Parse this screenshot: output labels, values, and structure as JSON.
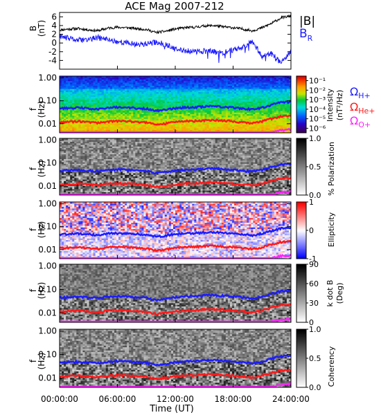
{
  "title": "ACE Mag 2007-212",
  "colors": {
    "bmag": "#000000",
    "br": "#1c1cff",
    "h_plus": "#1c1cff",
    "he_plus": "#ff1a1a",
    "o_plus": "#ff22ff",
    "frame": "#000000"
  },
  "chart_data": [
    {
      "type": "line",
      "panel": "field",
      "ylabel_line1": "B",
      "ylabel_line2": "(nT)",
      "ylim": [
        -6,
        7
      ],
      "yticks": [
        "6",
        "4",
        "2",
        "0",
        "-2",
        "-4"
      ],
      "ytick_values": [
        6,
        4,
        2,
        0,
        -2,
        -4
      ],
      "legend_top_right": [
        "|B|",
        "B_R"
      ],
      "legend": {
        "bmag": "|B|",
        "br_main": "B",
        "br_sub": "R"
      },
      "x": [
        0,
        1,
        2,
        3,
        4,
        5,
        6,
        7,
        8,
        9,
        10,
        11,
        12,
        13,
        14,
        15,
        16,
        17,
        18,
        19,
        20,
        21,
        22,
        23,
        24
      ],
      "series": [
        {
          "name": "|B|",
          "key": "bmag",
          "values": [
            3.0,
            3.2,
            3.3,
            3.0,
            2.8,
            3.4,
            3.6,
            3.5,
            3.3,
            3.1,
            2.4,
            2.7,
            3.2,
            3.5,
            3.6,
            3.9,
            4.0,
            3.7,
            3.5,
            3.2,
            2.8,
            3.5,
            4.5,
            5.8,
            6.2
          ]
        },
        {
          "name": "B_R",
          "key": "br",
          "values": [
            1.5,
            1.0,
            0.6,
            0.8,
            1.2,
            0.8,
            0.3,
            0.0,
            -0.3,
            -0.2,
            0.2,
            -0.3,
            -1.5,
            -1.8,
            -2.0,
            -1.8,
            -2.0,
            -2.3,
            -1.5,
            -1.0,
            0.5,
            -3.0,
            -2.5,
            -4.6,
            -2.0
          ]
        }
      ]
    },
    {
      "type": "heatmap",
      "panel": "intensity",
      "ylabel_line1": "f",
      "ylabel_line2": "(Hz)",
      "ylim": [
        0.004,
        1.2
      ],
      "y_scale": "log",
      "yticks": [
        "1.00",
        "0.10",
        "0.01"
      ],
      "colorbar_label": "Intensity",
      "colorbar_unit": "(nT²/Hz)",
      "colorbar_ticks": [
        "10⁻¹",
        "10⁻²",
        "10⁻³",
        "10⁻⁴",
        "10⁻⁵",
        "10⁻⁶"
      ],
      "colorbar_range": [
        5e-07,
        0.3
      ],
      "colorscale": "rainbow"
    },
    {
      "type": "heatmap",
      "panel": "polarization",
      "ylabel_line1": "f",
      "ylabel_line2": "(Hz)",
      "ylim": [
        0.004,
        1.2
      ],
      "y_scale": "log",
      "yticks": [
        "1.00",
        "0.10",
        "0.01"
      ],
      "colorbar_label": "% Polarization",
      "colorbar_ticks": [
        "1.0",
        "0.5",
        "0.0"
      ],
      "colorbar_range": [
        0,
        1
      ],
      "colorscale": "gray"
    },
    {
      "type": "heatmap",
      "panel": "ellipticity",
      "ylabel_line1": "f",
      "ylabel_line2": "(Hz)",
      "ylim": [
        0.004,
        1.2
      ],
      "y_scale": "log",
      "yticks": [
        "1.00",
        "0.10",
        "0.01"
      ],
      "colorbar_label": "Ellipticity",
      "colorbar_ticks": [
        "1",
        "0",
        "-1"
      ],
      "colorbar_range": [
        -1,
        1
      ],
      "colorscale": "blue-white-red"
    },
    {
      "type": "heatmap",
      "panel": "kdotb",
      "ylabel_line1": "f",
      "ylabel_line2": "(Hz)",
      "ylim": [
        0.004,
        1.2
      ],
      "y_scale": "log",
      "yticks": [
        "1.00",
        "0.10",
        "0.01"
      ],
      "colorbar_label": "k dot B",
      "colorbar_unit": "(Deg)",
      "colorbar_ticks": [
        "90",
        "60",
        "30",
        "0"
      ],
      "colorbar_range": [
        0,
        90
      ],
      "colorscale": "gray"
    },
    {
      "type": "heatmap",
      "panel": "coherency",
      "ylabel_line1": "f",
      "ylabel_line2": "(Hz)",
      "ylim": [
        0.004,
        1.2
      ],
      "y_scale": "log",
      "yticks": [
        "1.00",
        "0.10",
        "0.01"
      ],
      "colorbar_label": "Coherency",
      "colorbar_ticks": [
        "1.0",
        "0.5",
        "0.0"
      ],
      "colorbar_range": [
        0,
        1
      ],
      "colorscale": "gray"
    }
  ],
  "gyro": {
    "labels": [
      "Ω_H+",
      "Ω_He+",
      "Ω_O+"
    ],
    "omega": "Ω",
    "h_sub": "H+",
    "he_sub": "He+",
    "o_sub": "O+",
    "x": [
      0,
      1,
      2,
      3,
      4,
      5,
      6,
      7,
      8,
      9,
      10,
      11,
      12,
      13,
      14,
      15,
      16,
      17,
      18,
      19,
      20,
      21,
      22,
      23,
      24
    ],
    "h_plus_hz": [
      0.045,
      0.048,
      0.05,
      0.046,
      0.043,
      0.05,
      0.052,
      0.05,
      0.048,
      0.045,
      0.036,
      0.04,
      0.047,
      0.051,
      0.052,
      0.056,
      0.058,
      0.054,
      0.05,
      0.046,
      0.042,
      0.05,
      0.066,
      0.085,
      0.09
    ],
    "he_plus_hz": [
      0.0112,
      0.012,
      0.0125,
      0.0115,
      0.0108,
      0.0125,
      0.013,
      0.0125,
      0.012,
      0.0112,
      0.009,
      0.01,
      0.0118,
      0.0128,
      0.013,
      0.014,
      0.0145,
      0.0135,
      0.0125,
      0.0115,
      0.0105,
      0.0125,
      0.0165,
      0.0212,
      0.0225
    ],
    "o_plus_hz": [
      0.0028,
      0.003,
      0.0031,
      0.0029,
      0.0027,
      0.0031,
      0.0033,
      0.0031,
      0.003,
      0.0028,
      0.0023,
      0.0025,
      0.003,
      0.0032,
      0.0033,
      0.0035,
      0.0036,
      0.0034,
      0.0031,
      0.0029,
      0.0026,
      0.0031,
      0.0041,
      0.0053,
      0.0056
    ]
  },
  "xaxis": {
    "label": "Time (UT)",
    "ticks": [
      "00:00:00",
      "06:00:00",
      "12:00:00",
      "18:00:00",
      "24:00:00"
    ],
    "tick_hours": [
      0,
      6,
      12,
      18,
      24
    ],
    "range": [
      0,
      24
    ]
  }
}
